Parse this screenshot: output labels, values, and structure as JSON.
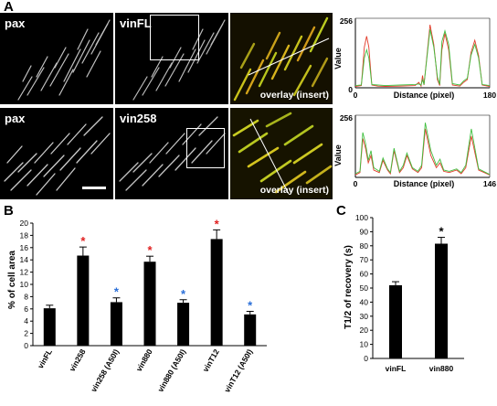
{
  "panel_letters": {
    "a": "A",
    "b": "B",
    "c": "C"
  },
  "row1": {
    "img1_label": "pax",
    "img2_label": "vinFL",
    "img3_label": "overlay  (insert)"
  },
  "row2": {
    "img1_label": "pax",
    "img2_label": "vin258",
    "img3_label": "overlay  (insert)"
  },
  "colors": {
    "red_trace": "#e23b2a",
    "green_trace": "#3fbf3f",
    "red_star": "#e02020",
    "blue_star": "#2b6fd8"
  },
  "chart_data": [
    {
      "type": "line",
      "panel": "A-top",
      "xlabel": "Distance (pixel)",
      "ylabel": "Value",
      "xlim": [
        0,
        180
      ],
      "ylim": [
        0,
        256
      ],
      "x_tick_labels": [
        "0",
        "180"
      ],
      "y_tick_labels": [
        "0",
        "256"
      ],
      "series": [
        {
          "color": "red",
          "x": [
            0,
            8,
            12,
            15,
            18,
            22,
            30,
            40,
            60,
            80,
            85,
            88,
            90,
            92,
            100,
            105,
            110,
            113,
            116,
            120,
            125,
            130,
            140,
            145,
            150,
            155,
            160,
            165,
            170,
            180
          ],
          "y": [
            5,
            8,
            150,
            190,
            150,
            10,
            6,
            5,
            6,
            8,
            20,
            6,
            45,
            10,
            232,
            160,
            30,
            8,
            140,
            200,
            140,
            10,
            6,
            20,
            30,
            130,
            175,
            120,
            10,
            5
          ]
        },
        {
          "color": "green",
          "x": [
            0,
            8,
            12,
            15,
            18,
            22,
            30,
            40,
            60,
            80,
            85,
            88,
            90,
            92,
            100,
            105,
            110,
            113,
            116,
            120,
            125,
            130,
            140,
            145,
            150,
            155,
            160,
            165,
            170,
            180
          ],
          "y": [
            8,
            10,
            110,
            140,
            110,
            12,
            10,
            8,
            10,
            12,
            14,
            10,
            30,
            12,
            215,
            150,
            40,
            12,
            170,
            210,
            160,
            15,
            10,
            25,
            35,
            120,
            160,
            110,
            12,
            8
          ]
        }
      ]
    },
    {
      "type": "line",
      "panel": "A-bottom",
      "xlabel": "Distance (pixel)",
      "ylabel": "Value",
      "xlim": [
        0,
        146
      ],
      "ylim": [
        0,
        256
      ],
      "x_tick_labels": [
        "0",
        "146"
      ],
      "y_tick_labels": [
        "0",
        "256"
      ],
      "series": [
        {
          "color": "red",
          "x": [
            0,
            5,
            8,
            11,
            14,
            17,
            20,
            26,
            30,
            35,
            38,
            42,
            48,
            52,
            56,
            62,
            68,
            72,
            76,
            82,
            88,
            92,
            96,
            102,
            110,
            115,
            120,
            126,
            134,
            146
          ],
          "y": [
            10,
            20,
            160,
            120,
            60,
            90,
            30,
            20,
            70,
            30,
            15,
            110,
            20,
            40,
            90,
            35,
            20,
            40,
            200,
            90,
            40,
            60,
            25,
            20,
            30,
            15,
            40,
            170,
            30,
            10
          ]
        },
        {
          "color": "green",
          "x": [
            0,
            5,
            8,
            11,
            14,
            17,
            20,
            26,
            30,
            35,
            38,
            42,
            48,
            52,
            56,
            62,
            68,
            72,
            76,
            82,
            88,
            92,
            96,
            102,
            110,
            115,
            120,
            126,
            134,
            146
          ],
          "y": [
            15,
            25,
            185,
            140,
            70,
            110,
            40,
            25,
            80,
            35,
            20,
            120,
            25,
            50,
            100,
            40,
            25,
            50,
            225,
            110,
            50,
            75,
            30,
            25,
            35,
            20,
            50,
            200,
            35,
            12
          ]
        }
      ]
    },
    {
      "type": "bar",
      "panel": "B",
      "ylabel": "% of cell area",
      "ylim": [
        0,
        20
      ],
      "y_ticks": [
        0,
        2,
        4,
        6,
        8,
        10,
        12,
        14,
        16,
        18,
        20
      ],
      "categories": [
        "vinFL",
        "vin258",
        "vin258 (A50I)",
        "vin880",
        "vin880 (A50I)",
        "vinT12",
        "vinT12 (A50I)"
      ],
      "values": [
        6.1,
        14.7,
        7.1,
        13.7,
        7.0,
        17.4,
        5.1
      ],
      "errors": [
        0.5,
        1.4,
        0.7,
        0.9,
        0.5,
        1.5,
        0.5
      ],
      "markers": [
        "",
        "*",
        "*",
        "*",
        "*",
        "*",
        "*"
      ],
      "marker_colors": [
        "",
        "red",
        "blue",
        "red",
        "blue",
        "red",
        "blue"
      ]
    },
    {
      "type": "bar",
      "panel": "C",
      "ylabel": "T1/2 of recovery (s)",
      "ylim": [
        0,
        100
      ],
      "y_ticks": [
        0,
        10,
        20,
        30,
        40,
        50,
        60,
        70,
        80,
        90,
        100
      ],
      "categories": [
        "vinFL",
        "vin880"
      ],
      "values": [
        52,
        81.5
      ],
      "errors": [
        2.5,
        4.5
      ],
      "markers": [
        "",
        "*"
      ],
      "marker_colors": [
        "",
        "black"
      ]
    }
  ]
}
